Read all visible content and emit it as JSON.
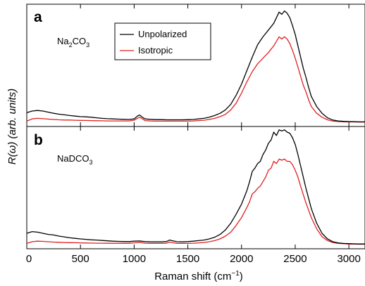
{
  "chart_data": [
    {
      "type": "line",
      "panel": "a",
      "label_main": "Na",
      "label_sub": "2",
      "label_tail": "CO",
      "label_sub2": "3",
      "xlim": [
        0,
        3150
      ],
      "ylim": [
        0,
        1
      ],
      "legend": {
        "placement": "top-left",
        "items": [
          "Unpolarized",
          "Isotropic"
        ]
      },
      "series": [
        {
          "name": "Unpolarized",
          "color": "#000000",
          "x": [
            0,
            50,
            100,
            150,
            200,
            250,
            300,
            350,
            400,
            450,
            500,
            550,
            600,
            650,
            700,
            750,
            800,
            850,
            900,
            950,
            1000,
            1030,
            1050,
            1070,
            1100,
            1150,
            1200,
            1250,
            1300,
            1350,
            1400,
            1450,
            1500,
            1550,
            1600,
            1650,
            1700,
            1750,
            1800,
            1850,
            1900,
            1950,
            2000,
            2050,
            2100,
            2150,
            2200,
            2250,
            2300,
            2325,
            2350,
            2375,
            2400,
            2425,
            2450,
            2475,
            2500,
            2525,
            2550,
            2575,
            2600,
            2625,
            2650,
            2700,
            2750,
            2800,
            2850,
            2900,
            2950,
            3000,
            3050,
            3100,
            3150
          ],
          "y": [
            0.085,
            0.1,
            0.105,
            0.1,
            0.09,
            0.08,
            0.072,
            0.066,
            0.06,
            0.055,
            0.05,
            0.048,
            0.045,
            0.04,
            0.035,
            0.032,
            0.03,
            0.028,
            0.026,
            0.025,
            0.03,
            0.055,
            0.065,
            0.05,
            0.03,
            0.026,
            0.024,
            0.024,
            0.022,
            0.022,
            0.022,
            0.022,
            0.023,
            0.025,
            0.03,
            0.035,
            0.045,
            0.06,
            0.08,
            0.11,
            0.16,
            0.24,
            0.34,
            0.46,
            0.58,
            0.69,
            0.76,
            0.82,
            0.88,
            0.93,
            0.98,
            0.96,
            0.99,
            0.97,
            0.93,
            0.86,
            0.78,
            0.68,
            0.58,
            0.48,
            0.4,
            0.31,
            0.23,
            0.14,
            0.08,
            0.04,
            0.02,
            0.012,
            0.008,
            0.006,
            0.005,
            0.004,
            0.004
          ]
        },
        {
          "name": "Isotropic",
          "color": "#e02020",
          "x": [
            0,
            50,
            100,
            150,
            200,
            250,
            300,
            350,
            400,
            450,
            500,
            550,
            600,
            650,
            700,
            750,
            800,
            850,
            900,
            950,
            1000,
            1030,
            1050,
            1070,
            1100,
            1150,
            1200,
            1250,
            1300,
            1350,
            1400,
            1450,
            1500,
            1550,
            1600,
            1650,
            1700,
            1750,
            1800,
            1850,
            1900,
            1950,
            2000,
            2050,
            2100,
            2150,
            2200,
            2250,
            2300,
            2325,
            2350,
            2375,
            2400,
            2425,
            2450,
            2475,
            2500,
            2525,
            2550,
            2575,
            2600,
            2625,
            2650,
            2700,
            2750,
            2800,
            2850,
            2900,
            2950,
            3000,
            3050,
            3100,
            3150
          ],
          "y": [
            0.01,
            0.03,
            0.035,
            0.032,
            0.028,
            0.025,
            0.022,
            0.02,
            0.02,
            0.018,
            0.017,
            0.016,
            0.015,
            0.014,
            0.013,
            0.012,
            0.012,
            0.012,
            0.012,
            0.012,
            0.018,
            0.035,
            0.045,
            0.035,
            0.015,
            0.012,
            0.01,
            0.01,
            0.01,
            0.01,
            0.01,
            0.01,
            0.01,
            0.012,
            0.015,
            0.018,
            0.025,
            0.035,
            0.05,
            0.07,
            0.11,
            0.17,
            0.26,
            0.36,
            0.45,
            0.52,
            0.57,
            0.62,
            0.68,
            0.72,
            0.76,
            0.74,
            0.76,
            0.74,
            0.7,
            0.64,
            0.57,
            0.49,
            0.41,
            0.33,
            0.27,
            0.2,
            0.14,
            0.08,
            0.045,
            0.022,
            0.01,
            0.006,
            0.004,
            0.003,
            0.003,
            0.002,
            0.002
          ]
        }
      ]
    },
    {
      "type": "line",
      "panel": "b",
      "label_main": "NaDCO",
      "label_sub": "3",
      "xlim": [
        0,
        3150
      ],
      "ylim": [
        0,
        1
      ],
      "xticks": [
        "0",
        "500",
        "1000",
        "1500",
        "2000",
        "2500",
        "3000"
      ],
      "xlabel": "Raman shift (cm",
      "xlabel_sup": "−1",
      "xlabel_tail": ")",
      "ylabel": "R(ω) (arb. units)",
      "series": [
        {
          "name": "Unpolarized",
          "color": "#000000",
          "x": [
            0,
            50,
            100,
            150,
            200,
            250,
            300,
            350,
            400,
            450,
            500,
            550,
            600,
            650,
            700,
            750,
            800,
            850,
            900,
            950,
            1000,
            1050,
            1100,
            1150,
            1200,
            1250,
            1300,
            1330,
            1350,
            1400,
            1450,
            1500,
            1550,
            1600,
            1650,
            1700,
            1750,
            1800,
            1850,
            1900,
            1950,
            2000,
            2050,
            2075,
            2100,
            2125,
            2150,
            2175,
            2200,
            2225,
            2250,
            2275,
            2300,
            2325,
            2350,
            2375,
            2400,
            2425,
            2450,
            2475,
            2500,
            2525,
            2550,
            2600,
            2650,
            2700,
            2750,
            2800,
            2850,
            2900,
            2950,
            3000,
            3050,
            3100,
            3150
          ],
          "y": [
            0.1,
            0.115,
            0.11,
            0.1,
            0.09,
            0.085,
            0.075,
            0.068,
            0.06,
            0.055,
            0.05,
            0.046,
            0.042,
            0.04,
            0.036,
            0.033,
            0.03,
            0.028,
            0.027,
            0.026,
            0.03,
            0.032,
            0.026,
            0.024,
            0.024,
            0.024,
            0.026,
            0.04,
            0.035,
            0.025,
            0.024,
            0.026,
            0.03,
            0.035,
            0.04,
            0.05,
            0.065,
            0.09,
            0.13,
            0.19,
            0.27,
            0.36,
            0.48,
            0.56,
            0.65,
            0.68,
            0.72,
            0.74,
            0.8,
            0.84,
            0.9,
            0.93,
            1.0,
            0.97,
            1.02,
            1.01,
            1.02,
            1.0,
            0.99,
            0.95,
            0.89,
            0.8,
            0.7,
            0.5,
            0.32,
            0.19,
            0.1,
            0.05,
            0.025,
            0.015,
            0.01,
            0.008,
            0.006,
            0.005,
            0.005
          ]
        },
        {
          "name": "Isotropic",
          "color": "#e02020",
          "x": [
            0,
            50,
            100,
            150,
            200,
            250,
            300,
            350,
            400,
            450,
            500,
            550,
            600,
            650,
            700,
            750,
            800,
            850,
            900,
            950,
            1000,
            1050,
            1100,
            1150,
            1200,
            1250,
            1300,
            1330,
            1350,
            1400,
            1450,
            1500,
            1550,
            1600,
            1650,
            1700,
            1750,
            1800,
            1850,
            1900,
            1950,
            2000,
            2050,
            2075,
            2100,
            2125,
            2150,
            2175,
            2200,
            2225,
            2250,
            2275,
            2300,
            2325,
            2350,
            2375,
            2400,
            2425,
            2450,
            2475,
            2500,
            2525,
            2550,
            2600,
            2650,
            2700,
            2750,
            2800,
            2850,
            2900,
            2950,
            3000,
            3050,
            3100,
            3150
          ],
          "y": [
            0.01,
            0.025,
            0.03,
            0.028,
            0.025,
            0.022,
            0.02,
            0.018,
            0.017,
            0.016,
            0.015,
            0.014,
            0.013,
            0.012,
            0.012,
            0.011,
            0.011,
            0.011,
            0.011,
            0.011,
            0.015,
            0.02,
            0.012,
            0.01,
            0.01,
            0.01,
            0.012,
            0.022,
            0.018,
            0.01,
            0.01,
            0.01,
            0.012,
            0.015,
            0.018,
            0.025,
            0.035,
            0.05,
            0.075,
            0.11,
            0.17,
            0.24,
            0.33,
            0.38,
            0.45,
            0.47,
            0.5,
            0.52,
            0.56,
            0.6,
            0.66,
            0.68,
            0.74,
            0.72,
            0.76,
            0.75,
            0.76,
            0.74,
            0.74,
            0.71,
            0.66,
            0.6,
            0.52,
            0.37,
            0.24,
            0.14,
            0.07,
            0.035,
            0.018,
            0.01,
            0.007,
            0.005,
            0.004,
            0.003,
            0.003
          ]
        }
      ]
    }
  ]
}
